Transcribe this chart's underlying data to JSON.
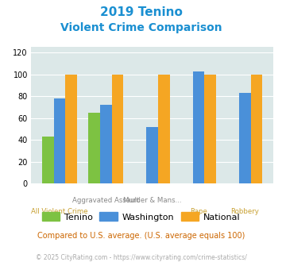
{
  "title_line1": "2019 Tenino",
  "title_line2": "Violent Crime Comparison",
  "tenino": [
    43,
    65,
    0,
    0,
    0
  ],
  "washington": [
    78,
    72,
    52,
    103,
    83
  ],
  "national": [
    100,
    100,
    100,
    100,
    100
  ],
  "color_tenino": "#7dc242",
  "color_washington": "#4a90d9",
  "color_national": "#f5a623",
  "color_bg": "#dce8e8",
  "color_title": "#1a8fd1",
  "ylim": [
    0,
    125
  ],
  "yticks": [
    0,
    20,
    40,
    60,
    80,
    100,
    120
  ],
  "footer_text": "Compared to U.S. average. (U.S. average equals 100)",
  "copyright_text": "© 2025 CityRating.com - https://www.cityrating.com/crime-statistics/",
  "legend_labels": [
    "Tenino",
    "Washington",
    "National"
  ],
  "top_xlabels": [
    "",
    "Aggravated Assault",
    "Murder & Mans...",
    "",
    ""
  ],
  "bot_xlabels": [
    "All Violent Crime",
    "",
    "",
    "Rape",
    "Robbery"
  ]
}
